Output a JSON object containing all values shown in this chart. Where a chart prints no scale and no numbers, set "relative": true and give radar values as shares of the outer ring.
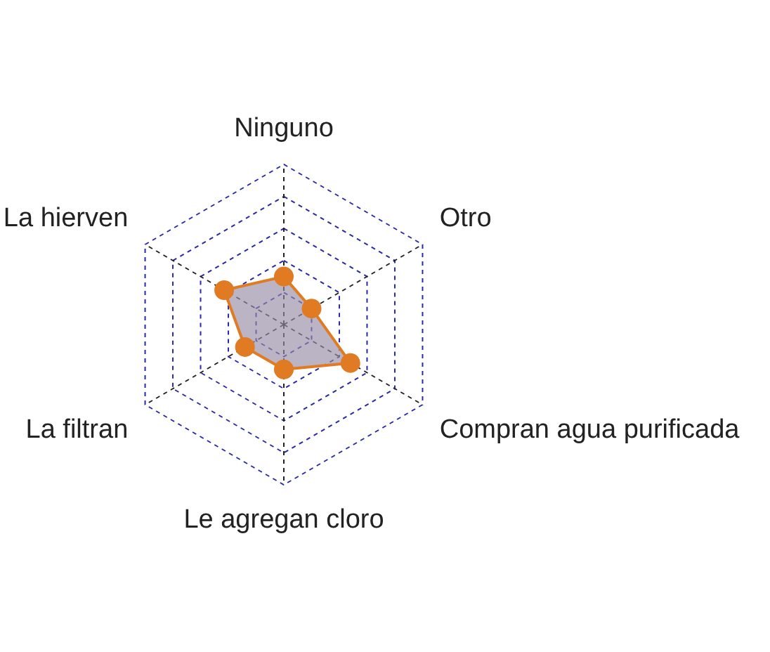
{
  "chart_data": {
    "type": "radar",
    "relative": true,
    "categories": [
      "Ninguno",
      "Otro",
      "Compran agua purificada",
      "Le agregan cloro",
      "La filtran",
      "La hierven"
    ],
    "series": [
      {
        "color": "#e07b24",
        "values": [
          0.3,
          0.2,
          0.48,
          0.28,
          0.28,
          0.43
        ]
      }
    ],
    "grid": true,
    "legend": false,
    "marker": "circle"
  }
}
